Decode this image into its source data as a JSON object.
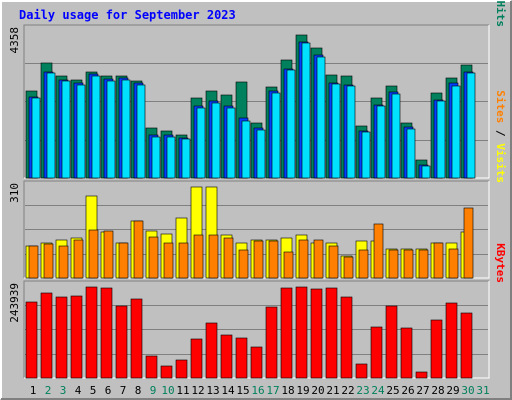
{
  "title": "Daily usage for September 2023",
  "colors": {
    "background": "#c0c0c0",
    "title": "#0000ff",
    "grid": "#808080",
    "hits": "#00805c",
    "files": "#0040ff",
    "pages": "#00e0ff",
    "visits": "#ffff00",
    "sites": "#ff8000",
    "kbytes": "#ff0000",
    "weekend_day_label": "#00805c",
    "weekday_label": "#000000"
  },
  "chart_data": {
    "type": "bar",
    "title": "Daily usage for September 2023",
    "categories": [
      "1",
      "2",
      "3",
      "4",
      "5",
      "6",
      "7",
      "8",
      "9",
      "10",
      "11",
      "12",
      "13",
      "14",
      "15",
      "16",
      "17",
      "18",
      "19",
      "20",
      "21",
      "22",
      "23",
      "24",
      "25",
      "26",
      "27",
      "28",
      "29",
      "30",
      "31"
    ],
    "weekend_days": [
      "2",
      "3",
      "9",
      "10",
      "16",
      "17",
      "23",
      "24",
      "30",
      "31"
    ],
    "panels": [
      {
        "id": "pfh",
        "ylabel_parts": [
          {
            "text": "Pages",
            "color": "#00e0ff"
          },
          {
            "text": " / ",
            "color": "#000000"
          },
          {
            "text": "Files",
            "color": "#0040ff"
          },
          {
            "text": " / ",
            "color": "#000000"
          },
          {
            "text": "Hits",
            "color": "#00805c"
          }
        ],
        "ymax_label": "4358",
        "ylim": [
          0,
          4358
        ],
        "series": [
          {
            "name": "Hits",
            "color": "#00805c",
            "values": [
              2590,
              3400,
              3020,
              2920,
              3150,
              3030,
              3030,
              2870,
              1470,
              1390,
              1260,
              2370,
              2590,
              2470,
              2860,
              1640,
              2710,
              3490,
              4230,
              3850,
              3040,
              3020,
              1550,
              2370,
              2720,
              1640,
              530,
              2520,
              2960,
              3350,
              null
            ]
          },
          {
            "name": "Files",
            "color": "#0040ff",
            "values": [
              2410,
              3150,
              2920,
              2810,
              3070,
              2940,
              2950,
              2820,
              1260,
              1260,
              1200,
              2120,
              2290,
              2130,
              1790,
              1490,
              2580,
              3240,
              4030,
              3650,
              2830,
              2770,
              1390,
              2170,
              2540,
              1500,
              400,
              2320,
              2810,
              3150,
              null
            ]
          },
          {
            "name": "Pages",
            "color": "#00e0ff",
            "values": [
              2370,
              3110,
              2880,
              2750,
              3010,
              2890,
              2910,
              2760,
              1230,
              1210,
              1160,
              2090,
              2220,
              2090,
              1690,
              1430,
              2510,
              3190,
              3990,
              3590,
              2780,
              2720,
              1350,
              2120,
              2480,
              1450,
              370,
              2290,
              2740,
              3110,
              null
            ]
          }
        ]
      },
      {
        "id": "vs",
        "ylabel_parts": [
          {
            "text": "Sites",
            "color": "#ff8000"
          },
          {
            "text": " / ",
            "color": "#000000"
          },
          {
            "text": "Visits",
            "color": "#ffff00"
          }
        ],
        "ymax_label": "310",
        "ylim": [
          0,
          310
        ],
        "series": [
          {
            "name": "Visits",
            "color": "#ffff00",
            "values": [
              110,
              120,
              130,
              135,
              280,
              155,
              120,
              195,
              160,
              150,
              205,
              315,
              310,
              145,
              120,
              130,
              130,
              135,
              145,
              120,
              120,
              75,
              125,
              125,
              100,
              100,
              100,
              120,
              120,
              155,
              null
            ]
          },
          {
            "name": "Sites",
            "color": "#ff8000",
            "values": [
              110,
              115,
              110,
              130,
              165,
              160,
              120,
              195,
              140,
              120,
              120,
              145,
              145,
              135,
              95,
              125,
              125,
              90,
              130,
              130,
              110,
              70,
              95,
              185,
              95,
              95,
              95,
              120,
              100,
              240,
              null
            ]
          }
        ]
      },
      {
        "id": "kb",
        "ylabel_parts": [
          {
            "text": "KBytes",
            "color": "#ff0000"
          }
        ],
        "ymax_label": "243939",
        "ylim": [
          0,
          243939
        ],
        "series": [
          {
            "name": "KBytes",
            "color": "#ff0000",
            "values": [
              205000,
              228000,
              218000,
              220000,
              243000,
              241000,
              193000,
              212000,
              58000,
              32000,
              48000,
              104000,
              147000,
              114000,
              106000,
              83000,
              191000,
              242000,
              248000,
              238000,
              240000,
              218000,
              37000,
              136000,
              192000,
              135000,
              17000,
              155000,
              201000,
              174000,
              null
            ]
          }
        ]
      }
    ]
  }
}
